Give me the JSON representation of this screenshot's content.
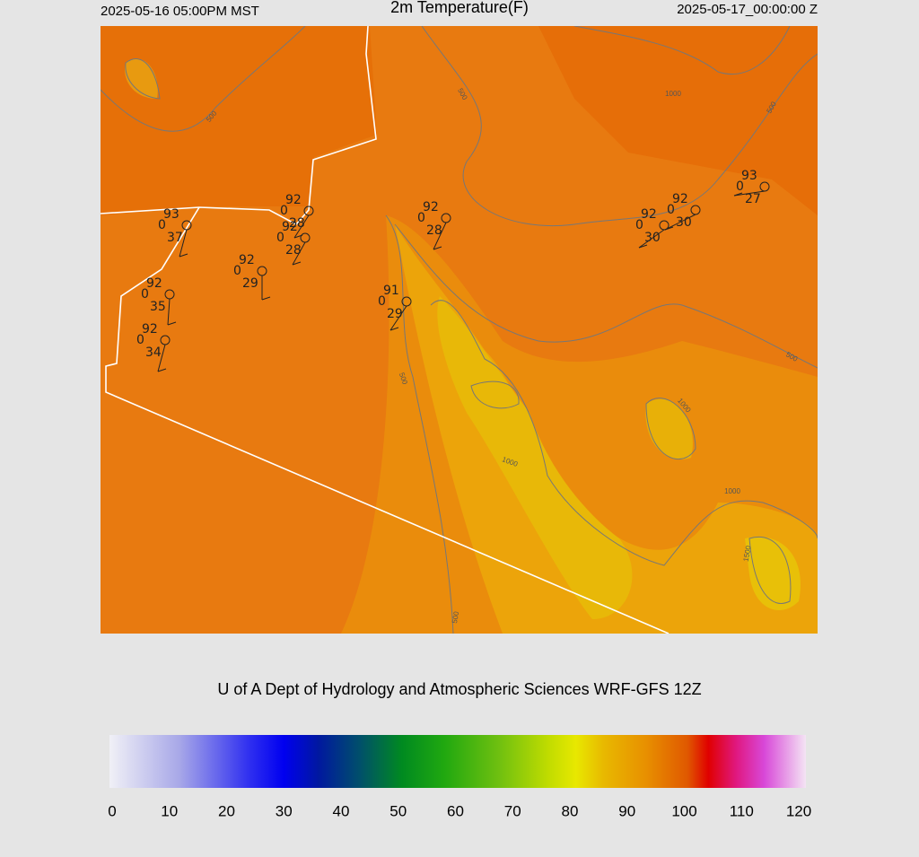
{
  "header": {
    "left": "2025-05-16 05:00PM MST",
    "title": "2m Temperature(F)",
    "right": "2025-05-17_00:00:00 Z"
  },
  "stations": [
    {
      "temperature": 93,
      "code": 0,
      "dewpoint": 37
    },
    {
      "temperature": 92,
      "code": 0,
      "dewpoint": 28
    },
    {
      "temperature": 92,
      "code": 0,
      "dewpoint": 28
    },
    {
      "temperature": 92,
      "code": 0,
      "dewpoint": 29
    },
    {
      "temperature": 92,
      "code": 0,
      "dewpoint": 35
    },
    {
      "temperature": 92,
      "code": 0,
      "dewpoint": 34
    },
    {
      "temperature": 92,
      "code": 0,
      "dewpoint": 28
    },
    {
      "temperature": 91,
      "code": 0,
      "dewpoint": 29
    },
    {
      "temperature": 92,
      "code": 0,
      "dewpoint": 30
    },
    {
      "temperature": 92,
      "code": 0,
      "dewpoint": 30
    },
    {
      "temperature": 93,
      "code": 0,
      "dewpoint": 27
    }
  ],
  "contour_labels": [
    500,
    500,
    500,
    500,
    500,
    500,
    1000,
    1000,
    1000,
    1000,
    1500
  ],
  "credit": "U of A Dept of Hydrology and Atmospheric Sciences WRF-GFS 12Z",
  "colorbar": {
    "range": [
      0,
      120
    ],
    "ticks": [
      0,
      10,
      20,
      30,
      40,
      50,
      60,
      70,
      80,
      90,
      100,
      110,
      120
    ]
  }
}
